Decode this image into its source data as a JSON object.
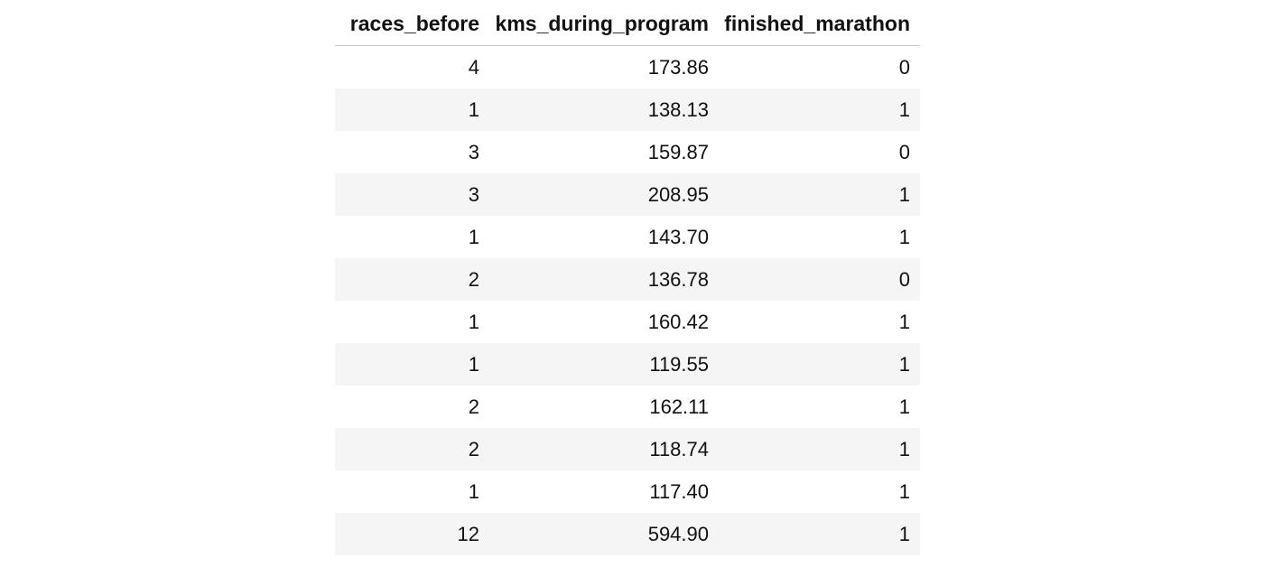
{
  "table": {
    "columns": [
      "races_before",
      "kms_during_program",
      "finished_marathon"
    ],
    "rows": [
      [
        "4",
        "173.86",
        "0"
      ],
      [
        "1",
        "138.13",
        "1"
      ],
      [
        "3",
        "159.87",
        "0"
      ],
      [
        "3",
        "208.95",
        "1"
      ],
      [
        "1",
        "143.70",
        "1"
      ],
      [
        "2",
        "136.78",
        "0"
      ],
      [
        "1",
        "160.42",
        "1"
      ],
      [
        "1",
        "119.55",
        "1"
      ],
      [
        "2",
        "162.11",
        "1"
      ],
      [
        "2",
        "118.74",
        "1"
      ],
      [
        "1",
        "117.40",
        "1"
      ],
      [
        "12",
        "594.90",
        "1"
      ]
    ]
  },
  "colors": {
    "stripe": "#f5f5f5",
    "header_rule": "#c8c8c8",
    "text": "#111111"
  }
}
